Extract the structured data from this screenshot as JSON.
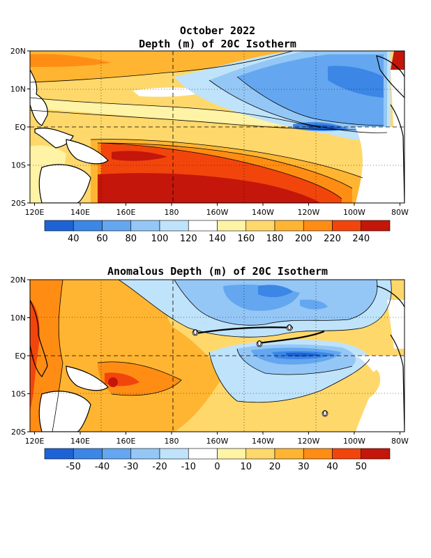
{
  "figure": {
    "date": "October 2022",
    "title1": "Depth (m) of 20C Isotherm",
    "title2": "Anomalous Depth (m) of 20C Isotherm"
  },
  "chart_data": [
    {
      "type": "heatmap",
      "title": "Depth (m) of 20C Isotherm",
      "subtitle": "October 2022",
      "xlabel": "",
      "ylabel": "",
      "x_ticks": [
        "120E",
        "140E",
        "160E",
        "180",
        "160W",
        "140W",
        "120W",
        "100W",
        "80W"
      ],
      "y_ticks": [
        "20N",
        "10N",
        "EQ",
        "10S",
        "20S"
      ],
      "xlim_deg_east": [
        118,
        282
      ],
      "ylim_deg_north": [
        -20,
        20
      ],
      "grid": "dashed at 180 and EQ, dotted elsewhere",
      "colorbar": {
        "labels": [
          "40",
          "60",
          "80",
          "100",
          "120",
          "140",
          "160",
          "180",
          "200",
          "220",
          "240"
        ],
        "colors": [
          "#1e63d6",
          "#3c86e6",
          "#64a7f0",
          "#94c7f6",
          "#bfe3fa",
          "#ffffff",
          "#fff3a6",
          "#ffd86b",
          "#ffb532",
          "#ff8d14",
          "#f2450c",
          "#c4160a"
        ]
      },
      "field_summary": "Deep (200-240+ m) thermocline in the southwest Pacific (160E-140W, 5S-20S) and off Central America near 20N; shallow (40-80 m) thermocline in the eastern Pacific 0-15N, 140W-90W."
    },
    {
      "type": "heatmap",
      "title": "Anomalous Depth (m) of 20C Isotherm",
      "xlabel": "",
      "ylabel": "",
      "x_ticks": [
        "120E",
        "140E",
        "160E",
        "180",
        "160W",
        "140W",
        "120W",
        "100W",
        "80W"
      ],
      "y_ticks": [
        "20N",
        "10N",
        "EQ",
        "10S",
        "20S"
      ],
      "xlim_deg_east": [
        118,
        282
      ],
      "ylim_deg_north": [
        -20,
        20
      ],
      "grid": "dashed at 180 and EQ, dotted elsewhere",
      "colorbar": {
        "labels": [
          "-50",
          "-40",
          "-30",
          "-20",
          "-10",
          "0",
          "10",
          "20",
          "30",
          "40",
          "50"
        ],
        "colors": [
          "#1e63d6",
          "#3c86e6",
          "#64a7f0",
          "#94c7f6",
          "#bfe3fa",
          "#ffffff",
          "#fff3a6",
          "#ffd86b",
          "#ffb532",
          "#ff8d14",
          "#f2450c",
          "#c4160a"
        ]
      },
      "contour_labels": [
        "0",
        "0",
        "0",
        "0"
      ],
      "field_summary": "Positive anomalies (+10 to +50 m) over the western Pacific, strongest near 150-160E 5S; negative anomalies (-10 to -50 m) in the central-eastern Pacific, strongest along the equator 140W-100W."
    }
  ]
}
